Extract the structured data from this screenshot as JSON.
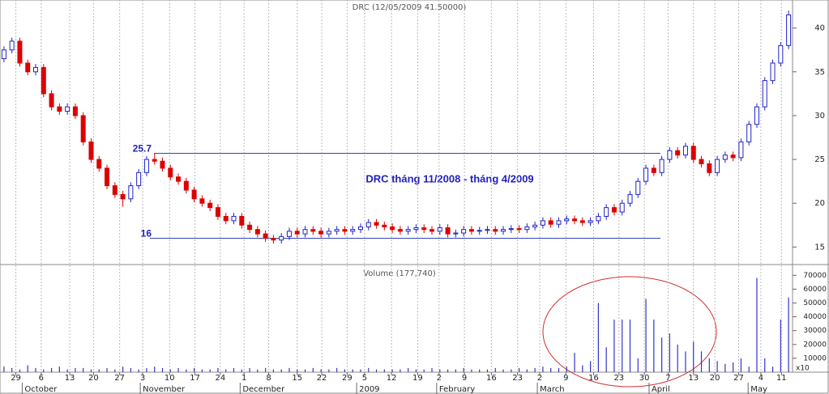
{
  "chart_data": [
    {
      "type": "candlestick",
      "title": "DRC (12/05/2009 41.50000)",
      "xlim": [
        -0.5,
        99.5
      ],
      "ylim": [
        13,
        43.2
      ],
      "yticks": [
        15,
        20,
        25,
        30,
        35,
        40
      ],
      "up_color": "#2222cc",
      "down_color": "#dd0000",
      "open": [
        36.5,
        37.5,
        38.5,
        36,
        35,
        35.5,
        32.5,
        31,
        30.5,
        31,
        30,
        27,
        25,
        24,
        22,
        21,
        20.5,
        22,
        23.5,
        25,
        24.8,
        24,
        23,
        22.5,
        21.5,
        20.5,
        20,
        19.5,
        18.5,
        18,
        18.5,
        17.5,
        17,
        16.5,
        16,
        15.8,
        16.2,
        16.8,
        16.5,
        17,
        16.8,
        16.5,
        16.8,
        17,
        16.8,
        17,
        17.3,
        17.8,
        17.5,
        17.3,
        17,
        16.8,
        17,
        17.2,
        17,
        16.8,
        17.2,
        16.5,
        16.6,
        17,
        16.8,
        16.9,
        17,
        16.8,
        17,
        17.1,
        17,
        17.3,
        17.5,
        18,
        17.6,
        18,
        18.2,
        18,
        17.8,
        18,
        18.5,
        19.5,
        19,
        20,
        21,
        22.5,
        24,
        23.5,
        25,
        26,
        25.5,
        26.5,
        25,
        24.5,
        23.5,
        25,
        25.5,
        25.2,
        27,
        29,
        31,
        34,
        36,
        38
      ],
      "high": [
        37.9,
        38.9,
        38.9,
        36.4,
        35.9,
        35.9,
        32.9,
        31.4,
        31.4,
        31.4,
        30.4,
        27.4,
        25.4,
        24.4,
        22.4,
        21.4,
        22.4,
        23.9,
        25.4,
        25.7,
        25.2,
        24.4,
        23.4,
        22.9,
        21.9,
        20.9,
        20.4,
        19.9,
        18.9,
        18.9,
        18.9,
        17.9,
        17.4,
        16.9,
        16.4,
        16.6,
        17.2,
        17.2,
        17.4,
        17.4,
        17.2,
        17.2,
        17.4,
        17.4,
        17.4,
        17.7,
        18.2,
        18.2,
        17.9,
        17.7,
        17.4,
        17.4,
        17.6,
        17.6,
        17.4,
        17.6,
        17.6,
        17,
        17.4,
        17.4,
        17.3,
        17.4,
        17.4,
        17.4,
        17.5,
        17.5,
        17.7,
        17.9,
        18.4,
        18.4,
        18.4,
        18.6,
        18.6,
        18.4,
        18.4,
        18.9,
        19.9,
        19.9,
        20.4,
        21.4,
        22.9,
        24.4,
        24.4,
        25.4,
        26.4,
        26.4,
        26.9,
        26.9,
        25.4,
        24.9,
        25.4,
        25.9,
        25.9,
        27.4,
        29.4,
        31.4,
        34.4,
        36.4,
        38.4,
        42
      ],
      "low": [
        36.1,
        37.1,
        35.6,
        34.6,
        34.6,
        32.1,
        30.6,
        30.1,
        30.1,
        29.6,
        26.6,
        24.6,
        23.6,
        21.6,
        20.6,
        19.6,
        20.1,
        21.6,
        23.1,
        24.4,
        23.6,
        22.6,
        22.1,
        21.1,
        20.1,
        19.6,
        19.1,
        18.1,
        17.6,
        17.6,
        17.1,
        16.6,
        16.1,
        15.6,
        15.4,
        15.4,
        15.8,
        16.1,
        16.1,
        16.4,
        16.1,
        16.1,
        16.4,
        16.4,
        16.4,
        16.6,
        16.9,
        17.1,
        16.9,
        16.6,
        16.4,
        16.4,
        16.6,
        16.6,
        16.4,
        16.4,
        16.1,
        16.1,
        16.2,
        16.4,
        16.4,
        16.5,
        16.4,
        16.4,
        16.6,
        16.6,
        16.6,
        16.9,
        17.1,
        17.2,
        17.2,
        17.6,
        17.6,
        17.4,
        17.4,
        17.6,
        18.1,
        18.6,
        18.6,
        19.6,
        20.6,
        22.1,
        23.1,
        23.1,
        24.6,
        25.1,
        25.1,
        24.6,
        24.1,
        23.1,
        23.1,
        24.6,
        24.8,
        24.8,
        26.6,
        28.6,
        30.6,
        33.6,
        35.6,
        37.6
      ],
      "close": [
        37.5,
        38.5,
        36,
        35,
        35.5,
        32.5,
        31,
        30.5,
        31,
        30,
        27,
        25,
        24,
        22,
        21,
        20.5,
        22,
        23.5,
        25,
        24.8,
        24,
        23,
        22.5,
        21.5,
        20.5,
        20,
        19.5,
        18.5,
        18,
        18.5,
        17.5,
        17,
        16.5,
        16,
        15.8,
        16.2,
        16.8,
        16.5,
        17,
        16.8,
        16.5,
        16.8,
        17,
        16.8,
        17,
        17.3,
        17.8,
        17.5,
        17.3,
        17,
        16.8,
        17,
        17.2,
        17,
        16.8,
        17.2,
        16.5,
        16.6,
        17,
        16.8,
        16.9,
        17,
        16.8,
        17,
        17.1,
        17,
        17.3,
        17.5,
        18,
        17.6,
        18,
        18.2,
        18,
        17.8,
        18,
        18.5,
        19.5,
        19,
        20,
        21,
        22.5,
        24,
        23.5,
        25,
        26,
        25.5,
        26.5,
        25,
        24.5,
        23.5,
        25,
        25.5,
        25.2,
        27,
        29,
        31,
        34,
        36,
        38,
        41.5
      ],
      "hlines": [
        {
          "value": 25.7,
          "label": "25.7"
        },
        {
          "value": 16,
          "label": "16"
        }
      ],
      "annotation": "DRC tháng 11/2008 - tháng 4/2009"
    },
    {
      "type": "bar",
      "title": "Volume (177,740)",
      "multiplier_label": "x10",
      "color": "#3333cc",
      "xlim": [
        -0.5,
        99.5
      ],
      "ylim": [
        0,
        76000
      ],
      "yticks": [
        10000,
        20000,
        30000,
        40000,
        50000,
        60000,
        70000
      ],
      "values": [
        4000,
        3000,
        2000,
        5000,
        3000,
        2000,
        3000,
        4000,
        2000,
        3000,
        3000,
        2000,
        2000,
        3000,
        2000,
        4000,
        3000,
        2000,
        3000,
        4000,
        3000,
        2000,
        3000,
        2000,
        3000,
        2000,
        2000,
        3000,
        2000,
        3000,
        2000,
        3000,
        2000,
        3000,
        2000,
        2000,
        3000,
        2000,
        2000,
        3000,
        2000,
        2000,
        3000,
        2000,
        2000,
        2000,
        3000,
        2000,
        2000,
        2000,
        2000,
        3000,
        2000,
        2000,
        3000,
        2000,
        2000,
        2000,
        3000,
        2000,
        2000,
        2000,
        3000,
        2000,
        2000,
        3000,
        2000,
        3000,
        4000,
        3000,
        3000,
        4000,
        14000,
        5000,
        8000,
        50000,
        18000,
        38000,
        38000,
        38000,
        10000,
        53000,
        38000,
        25000,
        28000,
        20000,
        15000,
        22000,
        15000,
        10000,
        8000,
        6000,
        7000,
        10000,
        4000,
        68000,
        10000,
        4000,
        38000,
        54000
      ],
      "grid_x": true,
      "xticks": [
        {
          "value": 1.5,
          "label": "29"
        },
        {
          "value": 4.7,
          "label": "6"
        },
        {
          "value": 8.3,
          "label": "13"
        },
        {
          "value": 11.3,
          "label": "20"
        },
        {
          "value": 14.6,
          "label": "27"
        },
        {
          "value": 17.5,
          "label": "3"
        },
        {
          "value": 20.9,
          "label": "10"
        },
        {
          "value": 24.1,
          "label": "17"
        },
        {
          "value": 27.3,
          "label": "24"
        },
        {
          "value": 30.3,
          "label": "1"
        },
        {
          "value": 33.4,
          "label": "8"
        },
        {
          "value": 37,
          "label": "15"
        },
        {
          "value": 40.1,
          "label": "22"
        },
        {
          "value": 43.3,
          "label": "29"
        },
        {
          "value": 45.5,
          "label": "5"
        },
        {
          "value": 48.9,
          "label": "12"
        },
        {
          "value": 52.2,
          "label": "19"
        },
        {
          "value": 54.9,
          "label": "2"
        },
        {
          "value": 58.1,
          "label": "9"
        },
        {
          "value": 61.5,
          "label": "16"
        },
        {
          "value": 64.8,
          "label": "23"
        },
        {
          "value": 67.6,
          "label": "2"
        },
        {
          "value": 70.9,
          "label": "9"
        },
        {
          "value": 74.4,
          "label": "16"
        },
        {
          "value": 77.6,
          "label": "23"
        },
        {
          "value": 80.8,
          "label": "30"
        },
        {
          "value": 83.8,
          "label": "7"
        },
        {
          "value": 87,
          "label": "13"
        },
        {
          "value": 89.7,
          "label": "20"
        },
        {
          "value": 92.7,
          "label": "27"
        },
        {
          "value": 95.5,
          "label": "4"
        },
        {
          "value": 98.1,
          "label": "11"
        }
      ],
      "months": [
        {
          "value": 2.3,
          "label": "October"
        },
        {
          "value": 17.2,
          "label": "November"
        },
        {
          "value": 29.8,
          "label": "December"
        },
        {
          "value": 44.5,
          "label": "2009"
        },
        {
          "value": 54.6,
          "label": "February"
        },
        {
          "value": 67.3,
          "label": "March"
        },
        {
          "value": 81.4,
          "label": "April"
        },
        {
          "value": 93.9,
          "label": "May"
        }
      ]
    }
  ]
}
